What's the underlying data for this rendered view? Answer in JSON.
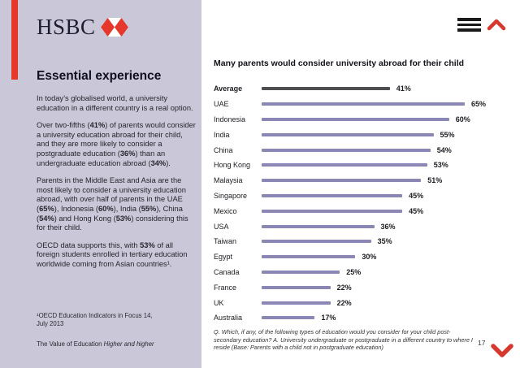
{
  "page": {
    "background": "#ffffff",
    "panel_background": "#c9c7d8",
    "accent_red": "#e5382b",
    "bar_purple": "#8a87b5",
    "bar_dark": "#4f4f51"
  },
  "header": {
    "logo_text": "HSBC",
    "menu_icon": "hamburger-menu",
    "nav_up_icon": "chevron-up",
    "nav_down_icon": "chevron-down"
  },
  "left_panel": {
    "heading": "Essential experience",
    "paragraphs": [
      [
        {
          "t": "In today’s globalised world, a university education in a different country is a real option."
        }
      ],
      [
        {
          "t": "Over two-fifths ("
        },
        {
          "t": "41%",
          "b": true
        },
        {
          "t": ") of parents would consider a university education abroad for their child, and they are more likely to consider a postgraduate education ("
        },
        {
          "t": "36%",
          "b": true
        },
        {
          "t": ") than an undergraduate education abroad ("
        },
        {
          "t": "34%",
          "b": true
        },
        {
          "t": ")."
        }
      ],
      [
        {
          "t": "Parents in the Middle East and Asia are the most likely to consider a university education abroad, with over half of parents in the UAE ("
        },
        {
          "t": "65%",
          "b": true
        },
        {
          "t": "), Indonesia ("
        },
        {
          "t": "60%",
          "b": true
        },
        {
          "t": "), India ("
        },
        {
          "t": "55%",
          "b": true
        },
        {
          "t": "), China ("
        },
        {
          "t": "54%",
          "b": true
        },
        {
          "t": ") and Hong Kong ("
        },
        {
          "t": "53%",
          "b": true
        },
        {
          "t": ") considering this for their child."
        }
      ],
      [
        {
          "t": "OECD data supports this, with "
        },
        {
          "t": "53%",
          "b": true
        },
        {
          "t": " of all foreign students enrolled in tertiary education worldwide coming from Asian countries¹."
        }
      ]
    ],
    "footnote_lines": [
      "¹OECD Education Indicators in Focus 14,",
      "July 2013"
    ],
    "footer_segments": [
      {
        "t": "The Value of Education "
      },
      {
        "t": "Higher and higher",
        "i": true
      }
    ]
  },
  "chart_data": {
    "type": "bar",
    "orientation": "horizontal",
    "title": "Many parents would consider university abroad for their child",
    "categories": [
      "Average",
      "UAE",
      "Indonesia",
      "India",
      "China",
      "Hong Kong",
      "Malaysia",
      "Singapore",
      "Mexico",
      "USA",
      "Taiwan",
      "Egypt",
      "Canada",
      "France",
      "UK",
      "Australia"
    ],
    "values": [
      41,
      65,
      60,
      55,
      54,
      53,
      51,
      45,
      45,
      36,
      35,
      30,
      25,
      22,
      22,
      17
    ],
    "unit": "%",
    "xlim": [
      0,
      67
    ],
    "grid": false,
    "legend": false,
    "highlight_category": "Average",
    "highlight_color": "#4f4f51",
    "series_color": "#8a87b5"
  },
  "chart_footer": {
    "question_lines": [
      "Q. Which, if any, of the following types of education would you consider for your child post-",
      "secondary education? A. University undergraduate or postgraduate in a different country to where I",
      "reside (Base: Parents with a child not in postgraduate education)"
    ],
    "page_number": "17"
  }
}
